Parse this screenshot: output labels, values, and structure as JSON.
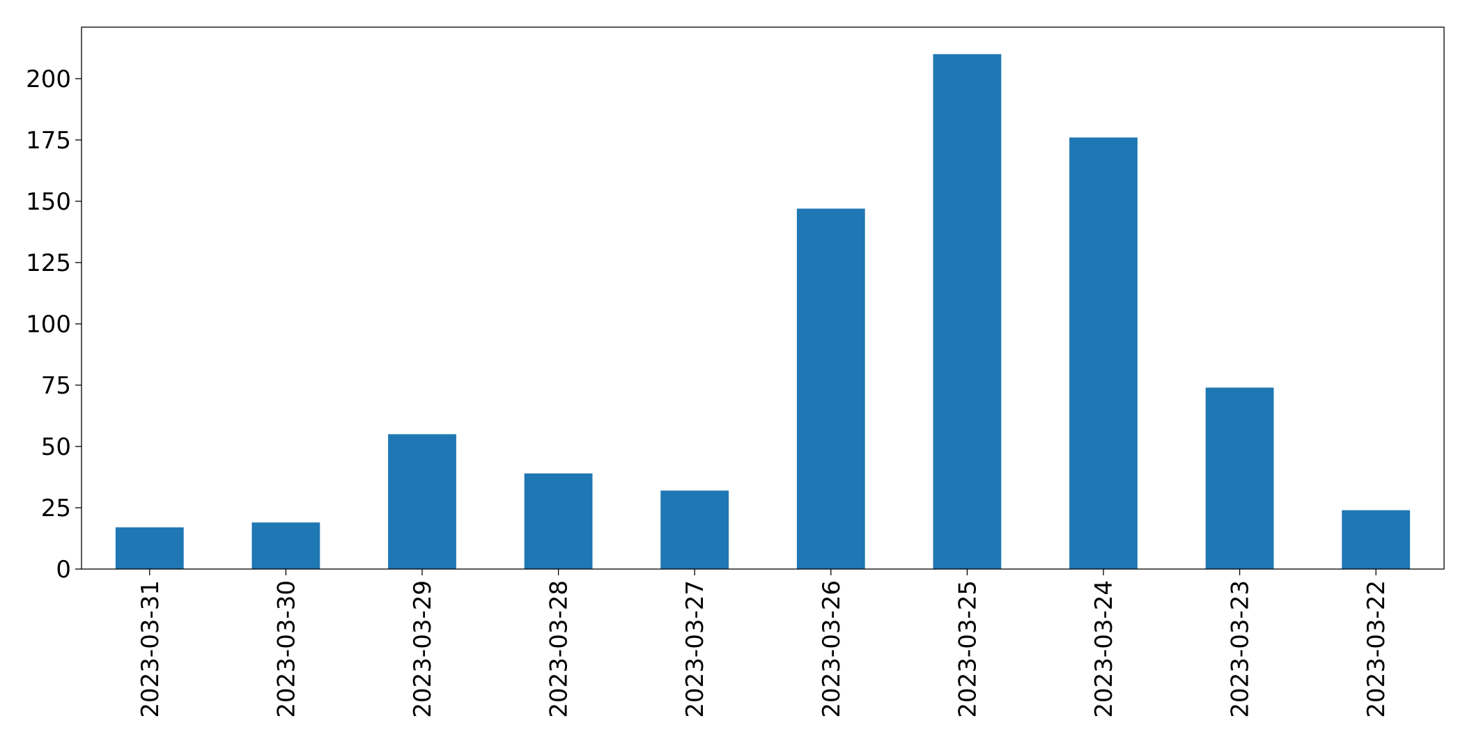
{
  "chart_data": {
    "type": "bar",
    "categories": [
      "2023-03-31",
      "2023-03-30",
      "2023-03-29",
      "2023-03-28",
      "2023-03-27",
      "2023-03-26",
      "2023-03-25",
      "2023-03-24",
      "2023-03-23",
      "2023-03-22"
    ],
    "values": [
      17,
      19,
      55,
      39,
      32,
      147,
      210,
      176,
      74,
      24
    ],
    "color": "#1f77b4",
    "ylim": [
      0,
      221
    ],
    "yticks": [
      0,
      25,
      50,
      75,
      100,
      125,
      150,
      175,
      200
    ],
    "grid": false
  }
}
